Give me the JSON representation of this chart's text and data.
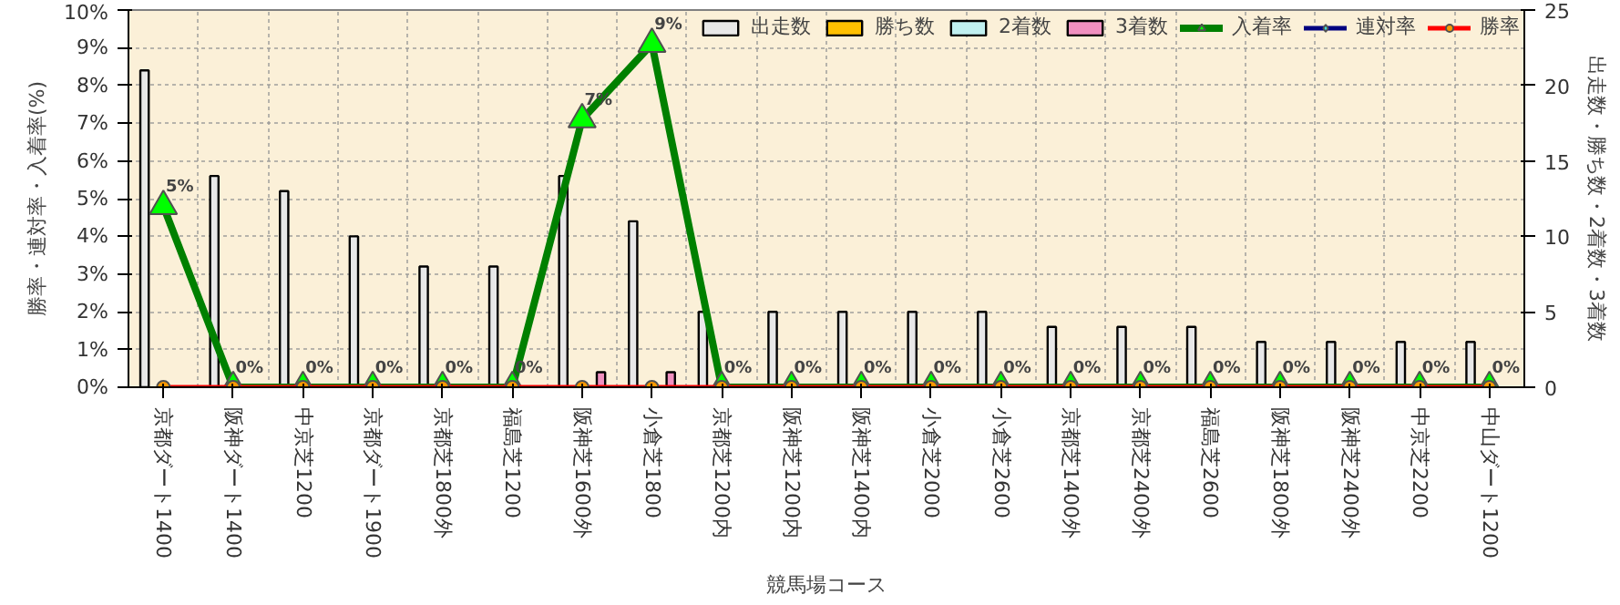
{
  "chart_data": {
    "type": "bar",
    "xlabel": "競馬場コース",
    "ylabel": "勝率・連対率・入着率(%)",
    "y2label": "出走数・勝ち数・2着数・3着数",
    "categories": [
      "京都ダート1400",
      "阪神ダート1400",
      "中京芝1200",
      "京都ダート1900",
      "京都芝1800外",
      "福島芝1200",
      "阪神芝1600外",
      "小倉芝1800",
      "京都芝1200内",
      "阪神芝1200内",
      "阪神芝1400内",
      "小倉芝2000",
      "小倉芝2600",
      "京都芝1400外",
      "京都芝2400外",
      "福島芝2600",
      "阪神芝1800外",
      "阪神芝2400外",
      "中京芝2200",
      "中山ダート1200"
    ],
    "series": [
      {
        "name": "出走数",
        "axis": "y2",
        "color": "#e8e8e8",
        "values": [
          21,
          14,
          13,
          10,
          8,
          8,
          14,
          11,
          5,
          5,
          5,
          5,
          5,
          4,
          4,
          4,
          3,
          3,
          3,
          3
        ]
      },
      {
        "name": "勝ち数",
        "axis": "y2",
        "color": "#ffc000",
        "values": [
          null,
          null,
          null,
          null,
          null,
          null,
          null,
          null,
          null,
          null,
          null,
          null,
          null,
          null,
          null,
          null,
          null,
          null,
          null,
          null
        ]
      },
      {
        "name": "2着数",
        "axis": "y2",
        "color": "#c0f0f0",
        "values": [
          null,
          null,
          null,
          null,
          null,
          null,
          null,
          null,
          null,
          null,
          null,
          null,
          null,
          null,
          null,
          null,
          null,
          null,
          null,
          null
        ]
      },
      {
        "name": "3着数",
        "axis": "y2",
        "color": "#f090c0",
        "values": [
          null,
          null,
          null,
          null,
          null,
          null,
          1,
          1,
          null,
          null,
          null,
          null,
          null,
          null,
          null,
          null,
          null,
          null,
          null,
          null
        ]
      },
      {
        "name": "入着率",
        "type": "line",
        "color": "#008000",
        "marker": "triangle",
        "values": [
          4.8,
          0,
          0,
          0,
          0,
          0,
          7.1,
          9.1,
          0,
          0,
          0,
          0,
          0,
          0,
          0,
          0,
          0,
          0,
          0,
          0
        ],
        "value_labels": [
          "5%",
          "0%",
          "0%",
          "0%",
          "0%",
          "0%",
          "7%",
          "9%",
          "0%",
          "0%",
          "0%",
          "0%",
          "0%",
          "0%",
          "0%",
          "0%",
          "0%",
          "0%",
          "0%",
          "0%"
        ]
      },
      {
        "name": "連対率",
        "type": "line",
        "color": "#000080",
        "marker": "diamond",
        "values": [
          null,
          null,
          null,
          null,
          null,
          null,
          null,
          null,
          null,
          null,
          null,
          null,
          null,
          null,
          null,
          null,
          null,
          null,
          null,
          null
        ]
      },
      {
        "name": "勝率",
        "type": "line",
        "color": "#ff0000",
        "marker": "circle",
        "values": [
          0,
          0,
          0,
          0,
          0,
          0,
          0,
          0,
          0,
          0,
          0,
          0,
          0,
          0,
          0,
          0,
          0,
          0,
          0,
          0
        ]
      }
    ],
    "ylim": [
      0,
      10
    ],
    "yticks": [
      {
        "value": 0,
        "label": "0%"
      },
      {
        "value": 1,
        "label": "1%"
      },
      {
        "value": 2,
        "label": "2%"
      },
      {
        "value": 3,
        "label": "3%"
      },
      {
        "value": 4,
        "label": "4%"
      },
      {
        "value": 5,
        "label": "5%"
      },
      {
        "value": 6,
        "label": "6%"
      },
      {
        "value": 7,
        "label": "7%"
      },
      {
        "value": 8,
        "label": "8%"
      },
      {
        "value": 9,
        "label": "9%"
      },
      {
        "value": 10,
        "label": "10%"
      }
    ],
    "y2lim": [
      0,
      25
    ],
    "y2ticks": [
      0,
      5,
      10,
      15,
      20,
      25
    ],
    "grid": true,
    "legend": "top right"
  }
}
